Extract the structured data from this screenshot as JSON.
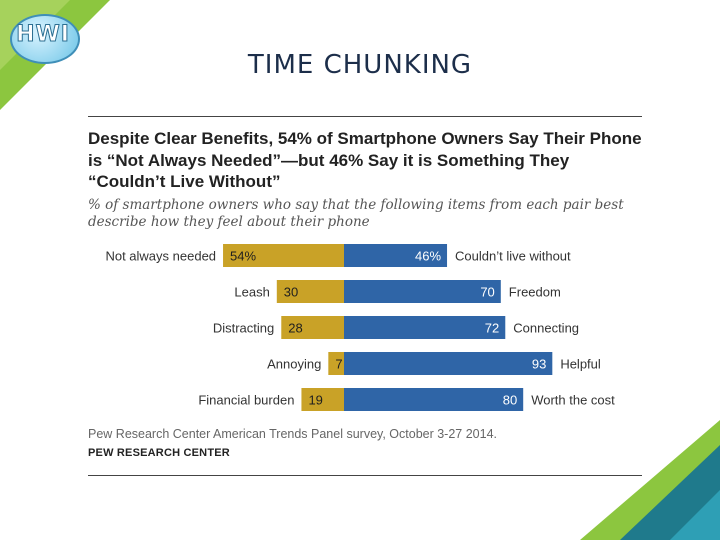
{
  "slide": {
    "title": "TIME CHUNKING",
    "logo_text": "HWI"
  },
  "colors": {
    "gold": "#C9A227",
    "blue": "#2F65A7",
    "corner_green": "#8CC63F",
    "corner_teal": "#1F7A8C"
  },
  "chart_data": {
    "type": "bar",
    "orientation": "horizontal",
    "stacked": "diverging",
    "title": "Despite Clear Benefits, 54% of Smartphone Owners Say Their Phone is “Not Always Needed”—but 46% Say it is Something They “Couldn’t Live Without”",
    "subtitle": "% of smartphone owners who say that the following items from each pair best describe how they feel about their phone",
    "categories_left": [
      "Not always needed",
      "Leash",
      "Distracting",
      "Annoying",
      "Financial burden"
    ],
    "categories_right": [
      "Couldn’t live without",
      "Freedom",
      "Connecting",
      "Helpful",
      "Worth the cost"
    ],
    "series": [
      {
        "values": [
          54,
          30,
          28,
          7,
          19
        ],
        "labels": [
          "54%",
          "30",
          "28",
          "7",
          "19"
        ]
      },
      {
        "values": [
          46,
          70,
          72,
          93,
          80
        ],
        "labels": [
          "46%",
          "70",
          "72",
          "93",
          "80"
        ]
      }
    ],
    "xlim": [
      0,
      100
    ],
    "grid": false,
    "source": "Pew Research Center American Trends Panel survey, October 3-27 2014.",
    "brand": "PEW RESEARCH CENTER"
  }
}
